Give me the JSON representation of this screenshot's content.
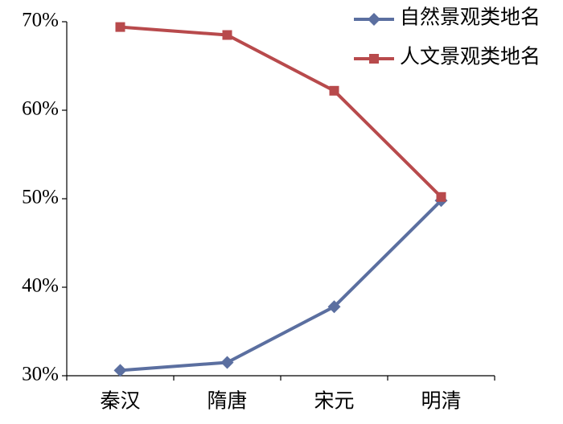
{
  "chart_data": {
    "type": "line",
    "categories": [
      "秦汉",
      "隋唐",
      "宋元",
      "明清"
    ],
    "series": [
      {
        "name": "自然景观类地名",
        "color": "#5b6fa0",
        "marker": "diamond",
        "values": [
          30.6,
          31.5,
          37.8,
          49.8
        ]
      },
      {
        "name": "人文景观类地名",
        "color": "#b84a4c",
        "marker": "square",
        "values": [
          69.4,
          68.5,
          62.2,
          50.2
        ]
      }
    ],
    "ylim": [
      30,
      70
    ],
    "yticks": [
      {
        "value": 30,
        "label": "30%"
      },
      {
        "value": 40,
        "label": "40%"
      },
      {
        "value": 50,
        "label": "50%"
      },
      {
        "value": 60,
        "label": "60%"
      },
      {
        "value": 70,
        "label": "70%"
      }
    ],
    "legend": "upper right"
  }
}
